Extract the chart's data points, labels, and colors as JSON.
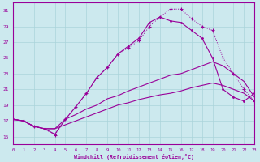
{
  "background_color": "#cce9ee",
  "grid_color": "#aad4da",
  "line_color": "#990099",
  "xlabel": "Windchill (Refroidissement éolien,°C)",
  "xlim": [
    0,
    23
  ],
  "ylim": [
    14,
    32
  ],
  "xticks": [
    0,
    1,
    2,
    3,
    4,
    5,
    6,
    7,
    8,
    9,
    10,
    11,
    12,
    13,
    14,
    15,
    16,
    17,
    18,
    19,
    20,
    21,
    22,
    23
  ],
  "yticks": [
    15,
    17,
    19,
    21,
    23,
    25,
    27,
    29,
    31
  ],
  "c1_x": [
    0,
    1,
    2,
    3,
    4,
    5,
    6,
    7,
    8,
    9,
    10,
    11,
    12,
    13,
    14,
    15,
    16,
    17,
    18,
    19,
    20,
    21,
    22,
    23
  ],
  "c1_y": [
    17.2,
    17.0,
    16.3,
    16.0,
    15.3,
    17.2,
    18.8,
    20.5,
    22.5,
    23.8,
    25.5,
    26.5,
    27.5,
    29.5,
    30.2,
    29.7,
    29.5,
    28.5,
    27.5,
    25.0,
    21.0,
    20.0,
    19.5,
    20.5
  ],
  "c2_x": [
    0,
    1,
    2,
    3,
    4,
    5,
    6,
    7,
    8,
    9,
    10,
    11,
    12,
    13,
    14,
    15,
    16,
    17,
    18,
    19,
    20,
    21,
    22,
    23
  ],
  "c2_y": [
    17.2,
    17.0,
    16.3,
    16.0,
    15.2,
    17.2,
    18.8,
    20.5,
    22.5,
    23.8,
    25.5,
    26.3,
    27.2,
    29.0,
    30.2,
    31.2,
    31.2,
    30.0,
    29.0,
    28.5,
    25.0,
    23.0,
    21.0,
    19.5
  ],
  "c3_x": [
    0,
    1,
    2,
    3,
    4,
    5,
    6,
    7,
    8,
    9,
    10,
    11,
    12,
    13,
    14,
    15,
    16,
    17,
    18,
    19,
    20,
    21,
    22,
    23
  ],
  "c3_y": [
    17.2,
    17.0,
    16.3,
    16.0,
    16.0,
    17.2,
    17.8,
    18.5,
    19.0,
    19.8,
    20.2,
    20.8,
    21.3,
    21.8,
    22.3,
    22.8,
    23.0,
    23.5,
    24.0,
    24.5,
    24.0,
    23.0,
    22.0,
    20.0
  ],
  "c4_x": [
    0,
    1,
    2,
    3,
    4,
    5,
    6,
    7,
    8,
    9,
    10,
    11,
    12,
    13,
    14,
    15,
    16,
    17,
    18,
    19,
    20,
    21,
    22,
    23
  ],
  "c4_y": [
    17.2,
    17.0,
    16.3,
    16.0,
    16.0,
    16.5,
    17.0,
    17.5,
    18.0,
    18.5,
    19.0,
    19.3,
    19.7,
    20.0,
    20.3,
    20.5,
    20.8,
    21.2,
    21.5,
    21.8,
    21.5,
    21.0,
    20.5,
    19.5
  ]
}
